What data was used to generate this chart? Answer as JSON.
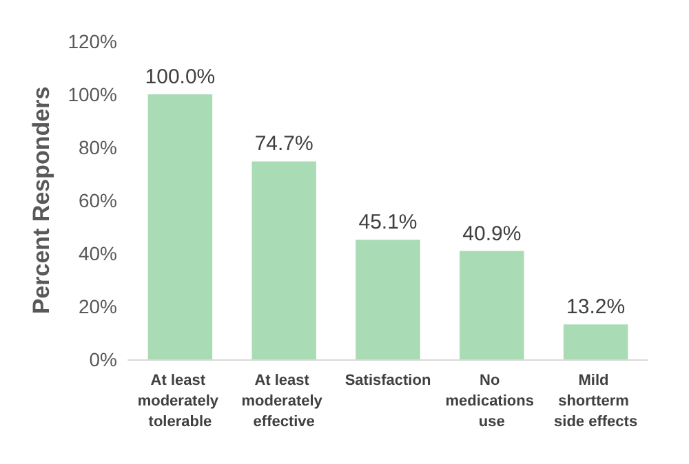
{
  "chart_data": {
    "type": "bar",
    "ylabel": "Percent Responders",
    "categories": [
      "At least moderately tolerable",
      "At least moderately effective",
      "Satisfaction",
      "No medications use",
      "Mild shortterm side effects"
    ],
    "values": [
      100.0,
      74.7,
      45.1,
      40.9,
      13.2
    ],
    "value_labels": [
      "100.0%",
      "74.7%",
      "45.1%",
      "40.9%",
      "13.2%"
    ],
    "color": "#a9dcb5",
    "ylim": [
      0,
      120
    ],
    "yticks": [
      {
        "value": 0,
        "label": "0%"
      },
      {
        "value": 20,
        "label": "20%"
      },
      {
        "value": 40,
        "label": "40%"
      },
      {
        "value": 60,
        "label": "60%"
      },
      {
        "value": 80,
        "label": "80%"
      },
      {
        "value": 100,
        "label": "100%"
      },
      {
        "value": 120,
        "label": "120%"
      }
    ],
    "grid": false
  }
}
